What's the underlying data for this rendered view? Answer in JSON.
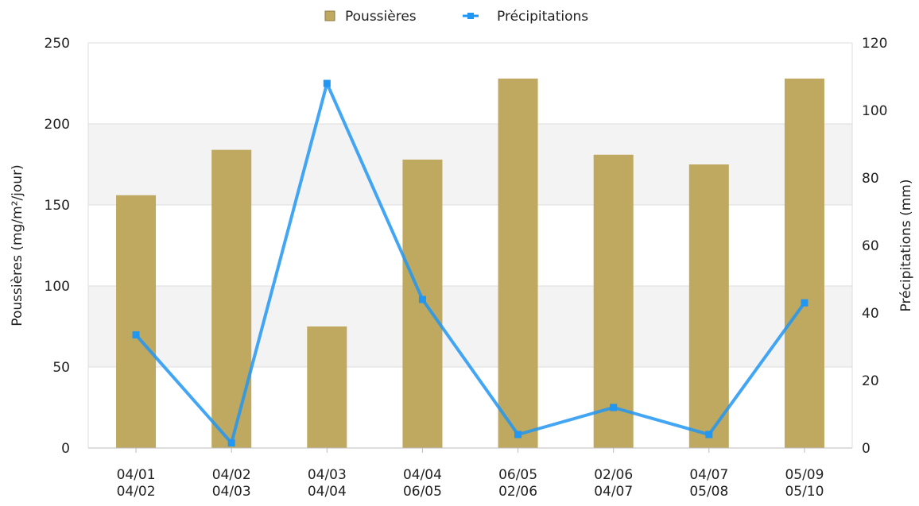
{
  "chart_data": {
    "type": "bar",
    "categories": [
      [
        "04/01",
        "04/02"
      ],
      [
        "04/02",
        "04/03"
      ],
      [
        "04/03",
        "04/04"
      ],
      [
        "04/04",
        "06/05"
      ],
      [
        "06/05",
        "02/06"
      ],
      [
        "02/06",
        "04/07"
      ],
      [
        "04/07",
        "05/08"
      ],
      [
        "05/09",
        "05/10"
      ]
    ],
    "series": [
      {
        "name": "Poussières",
        "type": "bar",
        "axis": "left",
        "color": "#bfa85f",
        "values": [
          156,
          184,
          75,
          178,
          228,
          181,
          175,
          228
        ]
      },
      {
        "name": "Précipitations",
        "type": "line",
        "axis": "right",
        "color": "#2196f3",
        "values": [
          33.5,
          1.5,
          108,
          44,
          4,
          12,
          4,
          43
        ]
      }
    ],
    "y_left": {
      "label": "Poussières (mg/m²/jour)",
      "min": 0,
      "max": 250,
      "ticks": [
        0,
        50,
        100,
        150,
        200,
        250
      ]
    },
    "y_right": {
      "label": "Précipitations (mm)",
      "min": 0,
      "max": 120,
      "ticks": [
        0,
        20,
        40,
        60,
        80,
        100,
        120
      ]
    },
    "xlabel": "",
    "title": "",
    "legend_position": "top-center",
    "grid": true,
    "band_color": "#f3f3f3",
    "grid_color": "#dddddd"
  }
}
